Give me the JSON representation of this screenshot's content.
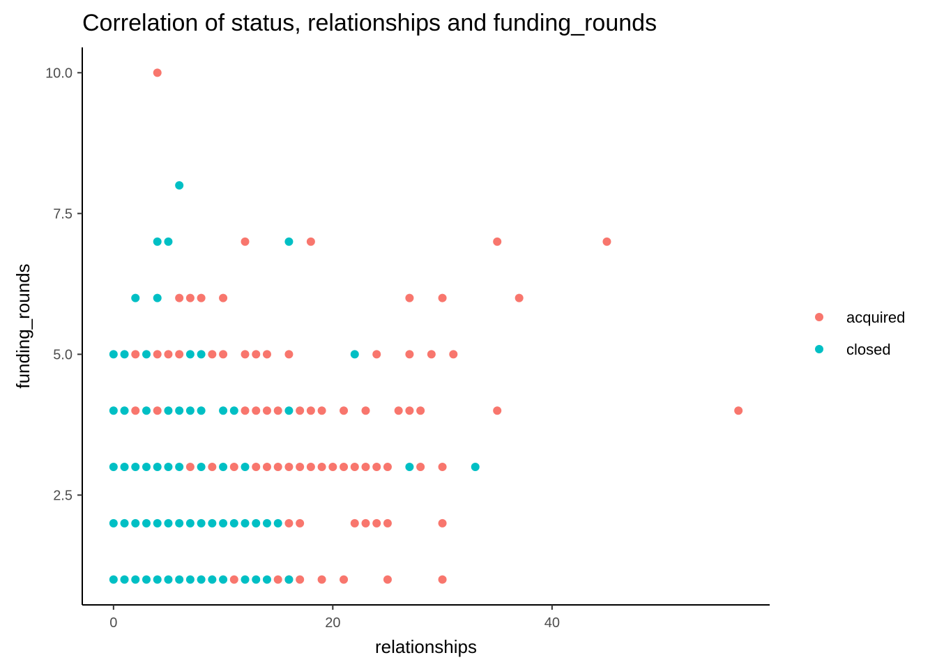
{
  "chart_data": {
    "type": "scatter",
    "title": "Correlation of status, relationships and funding_rounds",
    "xlabel": "relationships",
    "ylabel": "funding_rounds",
    "xlim": [
      -2.85,
      59.85
    ],
    "ylim": [
      0.55,
      10.45
    ],
    "xticks": [
      0,
      20,
      40
    ],
    "xtick_labels": [
      "0",
      "20",
      "40"
    ],
    "yticks": [
      2.5,
      5.0,
      7.5,
      10.0
    ],
    "ytick_labels": [
      "2.5",
      "5.0",
      "7.5",
      "10.0"
    ],
    "grid": false,
    "legend_position": "right",
    "series": [
      {
        "name": "acquired",
        "color": "#F8766D",
        "points": [
          [
            4,
            10
          ],
          [
            12,
            7
          ],
          [
            18,
            7
          ],
          [
            35,
            7
          ],
          [
            45,
            7
          ],
          [
            6,
            6
          ],
          [
            7,
            6
          ],
          [
            8,
            6
          ],
          [
            10,
            6
          ],
          [
            27,
            6
          ],
          [
            30,
            6
          ],
          [
            37,
            6
          ],
          [
            2,
            5
          ],
          [
            4,
            5
          ],
          [
            5,
            5
          ],
          [
            6,
            5
          ],
          [
            9,
            5
          ],
          [
            10,
            5
          ],
          [
            12,
            5
          ],
          [
            13,
            5
          ],
          [
            14,
            5
          ],
          [
            16,
            5
          ],
          [
            24,
            5
          ],
          [
            27,
            5
          ],
          [
            29,
            5
          ],
          [
            31,
            5
          ],
          [
            2,
            4
          ],
          [
            4,
            4
          ],
          [
            12,
            4
          ],
          [
            13,
            4
          ],
          [
            14,
            4
          ],
          [
            15,
            4
          ],
          [
            17,
            4
          ],
          [
            18,
            4
          ],
          [
            19,
            4
          ],
          [
            21,
            4
          ],
          [
            23,
            4
          ],
          [
            26,
            4
          ],
          [
            27,
            4
          ],
          [
            28,
            4
          ],
          [
            35,
            4
          ],
          [
            57,
            4
          ],
          [
            7,
            3
          ],
          [
            9,
            3
          ],
          [
            11,
            3
          ],
          [
            13,
            3
          ],
          [
            14,
            3
          ],
          [
            15,
            3
          ],
          [
            16,
            3
          ],
          [
            17,
            3
          ],
          [
            18,
            3
          ],
          [
            19,
            3
          ],
          [
            20,
            3
          ],
          [
            21,
            3
          ],
          [
            22,
            3
          ],
          [
            23,
            3
          ],
          [
            24,
            3
          ],
          [
            25,
            3
          ],
          [
            28,
            3
          ],
          [
            30,
            3
          ],
          [
            16,
            2
          ],
          [
            17,
            2
          ],
          [
            22,
            2
          ],
          [
            23,
            2
          ],
          [
            24,
            2
          ],
          [
            25,
            2
          ],
          [
            30,
            2
          ],
          [
            11,
            1
          ],
          [
            15,
            1
          ],
          [
            16,
            1
          ],
          [
            17,
            1
          ],
          [
            19,
            1
          ],
          [
            21,
            1
          ],
          [
            25,
            1
          ],
          [
            30,
            1
          ]
        ]
      },
      {
        "name": "closed",
        "color": "#00BFC4",
        "points": [
          [
            6,
            8
          ],
          [
            4,
            7
          ],
          [
            5,
            7
          ],
          [
            16,
            7
          ],
          [
            2,
            6
          ],
          [
            4,
            6
          ],
          [
            0,
            5
          ],
          [
            1,
            5
          ],
          [
            3,
            5
          ],
          [
            7,
            5
          ],
          [
            8,
            5
          ],
          [
            22,
            5
          ],
          [
            0,
            4
          ],
          [
            1,
            4
          ],
          [
            3,
            4
          ],
          [
            5,
            4
          ],
          [
            6,
            4
          ],
          [
            7,
            4
          ],
          [
            8,
            4
          ],
          [
            10,
            4
          ],
          [
            11,
            4
          ],
          [
            16,
            4
          ],
          [
            0,
            3
          ],
          [
            1,
            3
          ],
          [
            2,
            3
          ],
          [
            3,
            3
          ],
          [
            4,
            3
          ],
          [
            5,
            3
          ],
          [
            6,
            3
          ],
          [
            8,
            3
          ],
          [
            10,
            3
          ],
          [
            12,
            3
          ],
          [
            27,
            3
          ],
          [
            33,
            3
          ],
          [
            0,
            2
          ],
          [
            1,
            2
          ],
          [
            2,
            2
          ],
          [
            3,
            2
          ],
          [
            4,
            2
          ],
          [
            5,
            2
          ],
          [
            6,
            2
          ],
          [
            7,
            2
          ],
          [
            8,
            2
          ],
          [
            9,
            2
          ],
          [
            10,
            2
          ],
          [
            11,
            2
          ],
          [
            12,
            2
          ],
          [
            13,
            2
          ],
          [
            14,
            2
          ],
          [
            15,
            2
          ],
          [
            0,
            1
          ],
          [
            1,
            1
          ],
          [
            2,
            1
          ],
          [
            3,
            1
          ],
          [
            4,
            1
          ],
          [
            5,
            1
          ],
          [
            6,
            1
          ],
          [
            7,
            1
          ],
          [
            8,
            1
          ],
          [
            9,
            1
          ],
          [
            10,
            1
          ],
          [
            12,
            1
          ],
          [
            13,
            1
          ],
          [
            14,
            1
          ],
          [
            16,
            1
          ]
        ]
      }
    ]
  }
}
